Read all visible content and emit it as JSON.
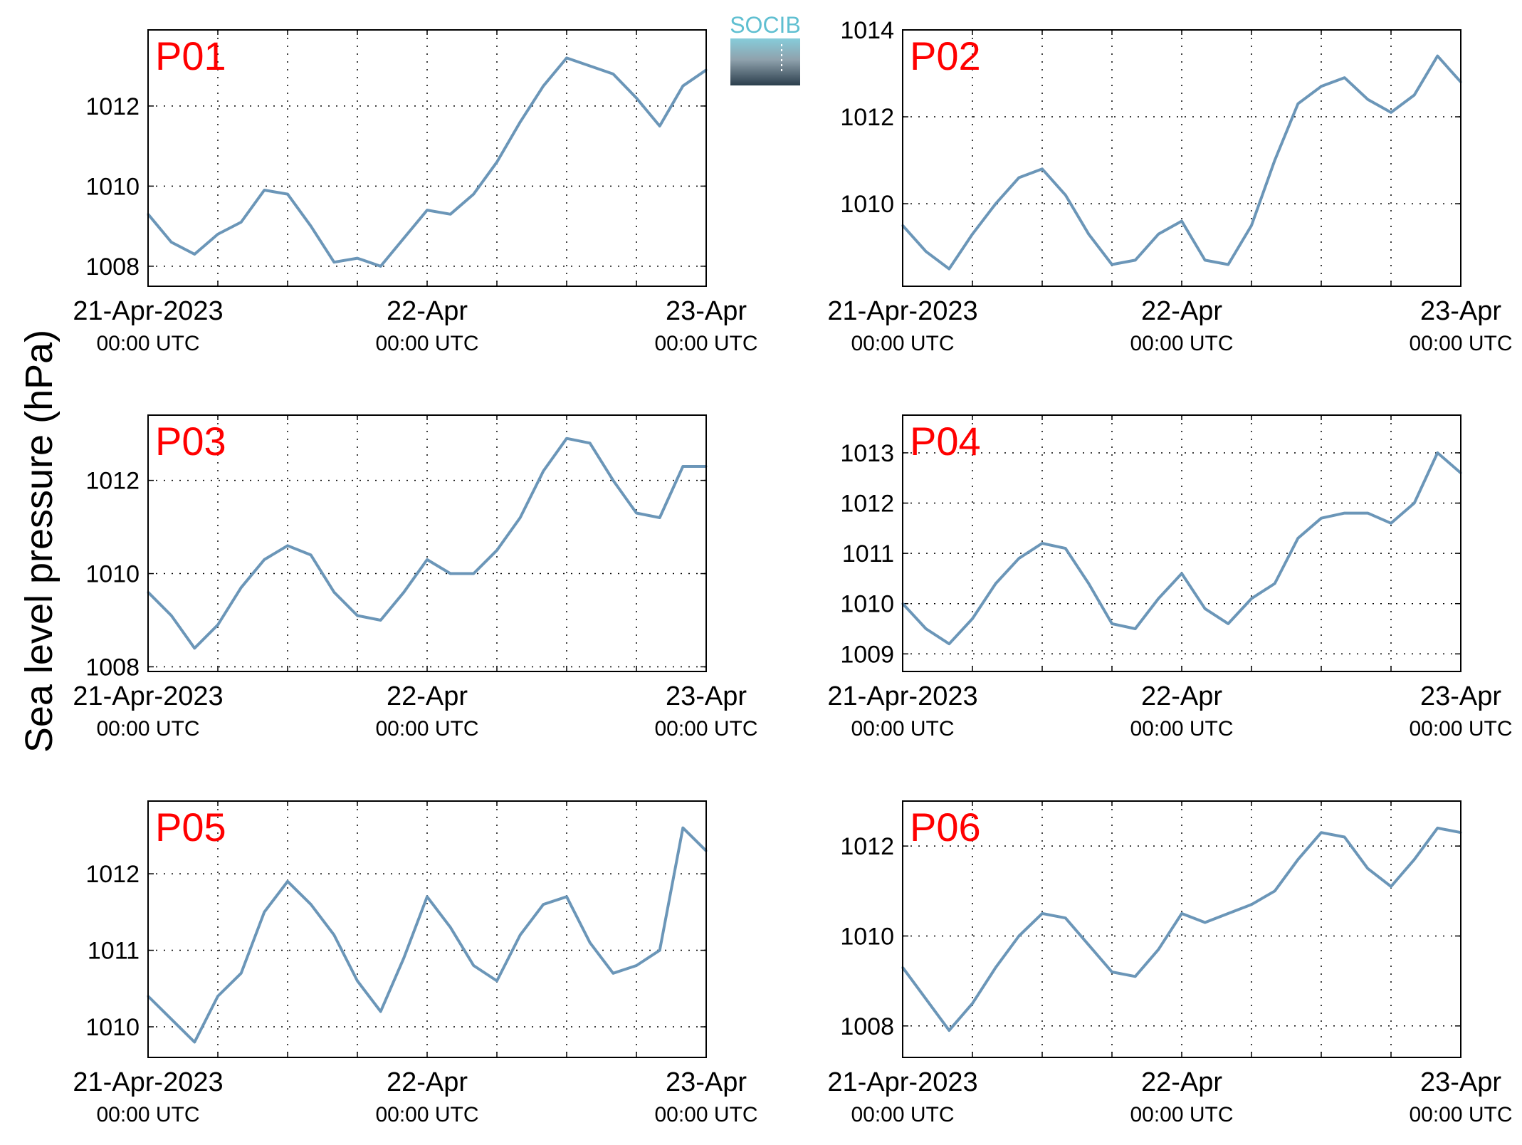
{
  "y_axis_title": "Sea level pressure (hPa)",
  "logo_text": "SOCIB",
  "chart_data": [
    {
      "type": "line",
      "panel_label": "P01",
      "x_range": [
        "21-Apr-2023 00:00 UTC",
        "23-Apr-2023 00:00 UTC"
      ],
      "ylim": [
        1007.5,
        1013.9
      ],
      "yticks": [
        1008,
        1010,
        1012
      ],
      "x_hours": [
        0,
        2,
        4,
        6,
        8,
        10,
        12,
        14,
        16,
        18,
        20,
        22,
        24,
        26,
        28,
        30,
        32,
        34,
        36,
        38,
        40,
        42,
        44,
        46,
        48
      ],
      "values": [
        1009.3,
        1008.6,
        1008.3,
        1008.8,
        1009.1,
        1009.9,
        1009.8,
        1009.0,
        1008.1,
        1008.2,
        1008.0,
        1008.7,
        1009.4,
        1009.3,
        1009.8,
        1010.6,
        1011.6,
        1012.5,
        1013.2,
        1013.0,
        1012.8,
        1012.2,
        1011.5,
        1012.5,
        1012.9
      ],
      "x_tick_labels": [
        "21-Apr-2023",
        "22-Apr",
        "23-Apr"
      ],
      "x_tick_sublabels": [
        "00:00 UTC",
        "00:00 UTC",
        "00:00 UTC"
      ],
      "line_color": "#6b96b8",
      "grid": true
    },
    {
      "type": "line",
      "panel_label": "P02",
      "x_range": [
        "21-Apr-2023 00:00 UTC",
        "23-Apr-2023 00:00 UTC"
      ],
      "ylim": [
        1008.1,
        1014.0
      ],
      "yticks": [
        1010,
        1012,
        1014
      ],
      "x_hours": [
        0,
        2,
        4,
        6,
        8,
        10,
        12,
        14,
        16,
        18,
        20,
        22,
        24,
        26,
        28,
        30,
        32,
        34,
        36,
        38,
        40,
        42,
        44,
        46,
        48
      ],
      "values": [
        1009.5,
        1008.9,
        1008.5,
        1009.3,
        1010.0,
        1010.6,
        1010.8,
        1010.2,
        1009.3,
        1008.6,
        1008.7,
        1009.3,
        1009.6,
        1008.7,
        1008.6,
        1009.5,
        1011.0,
        1012.3,
        1012.7,
        1012.9,
        1012.4,
        1012.1,
        1012.5,
        1013.4,
        1012.8
      ],
      "x_tick_labels": [
        "21-Apr-2023",
        "22-Apr",
        "23-Apr"
      ],
      "x_tick_sublabels": [
        "00:00 UTC",
        "00:00 UTC",
        "00:00 UTC"
      ],
      "line_color": "#6b96b8",
      "grid": true
    },
    {
      "type": "line",
      "panel_label": "P03",
      "x_range": [
        "21-Apr-2023 00:00 UTC",
        "23-Apr-2023 00:00 UTC"
      ],
      "ylim": [
        1007.9,
        1013.4
      ],
      "yticks": [
        1008,
        1010,
        1012
      ],
      "x_hours": [
        0,
        2,
        4,
        6,
        8,
        10,
        12,
        14,
        16,
        18,
        20,
        22,
        24,
        26,
        28,
        30,
        32,
        34,
        36,
        38,
        40,
        42,
        44,
        46,
        48
      ],
      "values": [
        1009.6,
        1009.1,
        1008.4,
        1008.9,
        1009.7,
        1010.3,
        1010.6,
        1010.4,
        1009.6,
        1009.1,
        1009.0,
        1009.6,
        1010.3,
        1010.0,
        1010.0,
        1010.5,
        1011.2,
        1012.2,
        1012.9,
        1012.8,
        1012.0,
        1011.3,
        1011.2,
        1012.3,
        1012.3
      ],
      "x_tick_labels": [
        "21-Apr-2023",
        "22-Apr",
        "23-Apr"
      ],
      "x_tick_sublabels": [
        "00:00 UTC",
        "00:00 UTC",
        "00:00 UTC"
      ],
      "line_color": "#6b96b8",
      "grid": true
    },
    {
      "type": "line",
      "panel_label": "P04",
      "x_range": [
        "21-Apr-2023 00:00 UTC",
        "23-Apr-2023 00:00 UTC"
      ],
      "ylim": [
        1008.65,
        1013.75
      ],
      "yticks": [
        1009,
        1010,
        1011,
        1012,
        1013
      ],
      "x_hours": [
        0,
        2,
        4,
        6,
        8,
        10,
        12,
        14,
        16,
        18,
        20,
        22,
        24,
        26,
        28,
        30,
        32,
        34,
        36,
        38,
        40,
        42,
        44,
        46,
        48
      ],
      "values": [
        1010.0,
        1009.5,
        1009.2,
        1009.7,
        1010.4,
        1010.9,
        1011.2,
        1011.1,
        1010.4,
        1009.6,
        1009.5,
        1010.1,
        1010.6,
        1009.9,
        1009.6,
        1010.1,
        1010.4,
        1011.3,
        1011.7,
        1011.8,
        1011.8,
        1011.6,
        1012.0,
        1013.0,
        1012.6
      ],
      "x_tick_labels": [
        "21-Apr-2023",
        "22-Apr",
        "23-Apr"
      ],
      "x_tick_sublabels": [
        "00:00 UTC",
        "00:00 UTC",
        "00:00 UTC"
      ],
      "line_color": "#6b96b8",
      "grid": true
    },
    {
      "type": "line",
      "panel_label": "P05",
      "x_range": [
        "21-Apr-2023 00:00 UTC",
        "23-Apr-2023 00:00 UTC"
      ],
      "ylim": [
        1009.6,
        1012.95
      ],
      "yticks": [
        1010,
        1011,
        1012
      ],
      "x_hours": [
        0,
        2,
        4,
        6,
        8,
        10,
        12,
        14,
        16,
        18,
        20,
        22,
        24,
        26,
        28,
        30,
        32,
        34,
        36,
        38,
        40,
        42,
        44,
        46,
        48
      ],
      "values": [
        1010.4,
        1010.1,
        1009.8,
        1010.4,
        1010.7,
        1011.5,
        1011.9,
        1011.6,
        1011.2,
        1010.6,
        1010.2,
        1010.9,
        1011.7,
        1011.3,
        1010.8,
        1010.6,
        1011.2,
        1011.6,
        1011.7,
        1011.1,
        1010.7,
        1010.8,
        1011.0,
        1012.6,
        1012.3
      ],
      "x_tick_labels": [
        "21-Apr-2023",
        "22-Apr",
        "23-Apr"
      ],
      "x_tick_sublabels": [
        "00:00 UTC",
        "00:00 UTC",
        "00:00 UTC"
      ],
      "line_color": "#6b96b8",
      "grid": true
    },
    {
      "type": "line",
      "panel_label": "P06",
      "x_range": [
        "21-Apr-2023 00:00 UTC",
        "23-Apr-2023 00:00 UTC"
      ],
      "ylim": [
        1007.3,
        1013.0
      ],
      "yticks": [
        1008,
        1010,
        1012
      ],
      "x_hours": [
        0,
        2,
        4,
        6,
        8,
        10,
        12,
        14,
        16,
        18,
        20,
        22,
        24,
        26,
        28,
        30,
        32,
        34,
        36,
        38,
        40,
        42,
        44,
        46,
        48
      ],
      "values": [
        1009.3,
        1008.6,
        1007.9,
        1008.5,
        1009.3,
        1010.0,
        1010.5,
        1010.4,
        1009.8,
        1009.2,
        1009.1,
        1009.7,
        1010.5,
        1010.3,
        1010.5,
        1010.7,
        1011.0,
        1011.7,
        1012.3,
        1012.2,
        1011.5,
        1011.1,
        1011.7,
        1012.4,
        1012.3
      ],
      "x_tick_labels": [
        "21-Apr-2023",
        "22-Apr",
        "23-Apr"
      ],
      "x_tick_sublabels": [
        "00:00 UTC",
        "00:00 UTC",
        "00:00 UTC"
      ],
      "line_color": "#6b96b8",
      "grid": true
    }
  ]
}
